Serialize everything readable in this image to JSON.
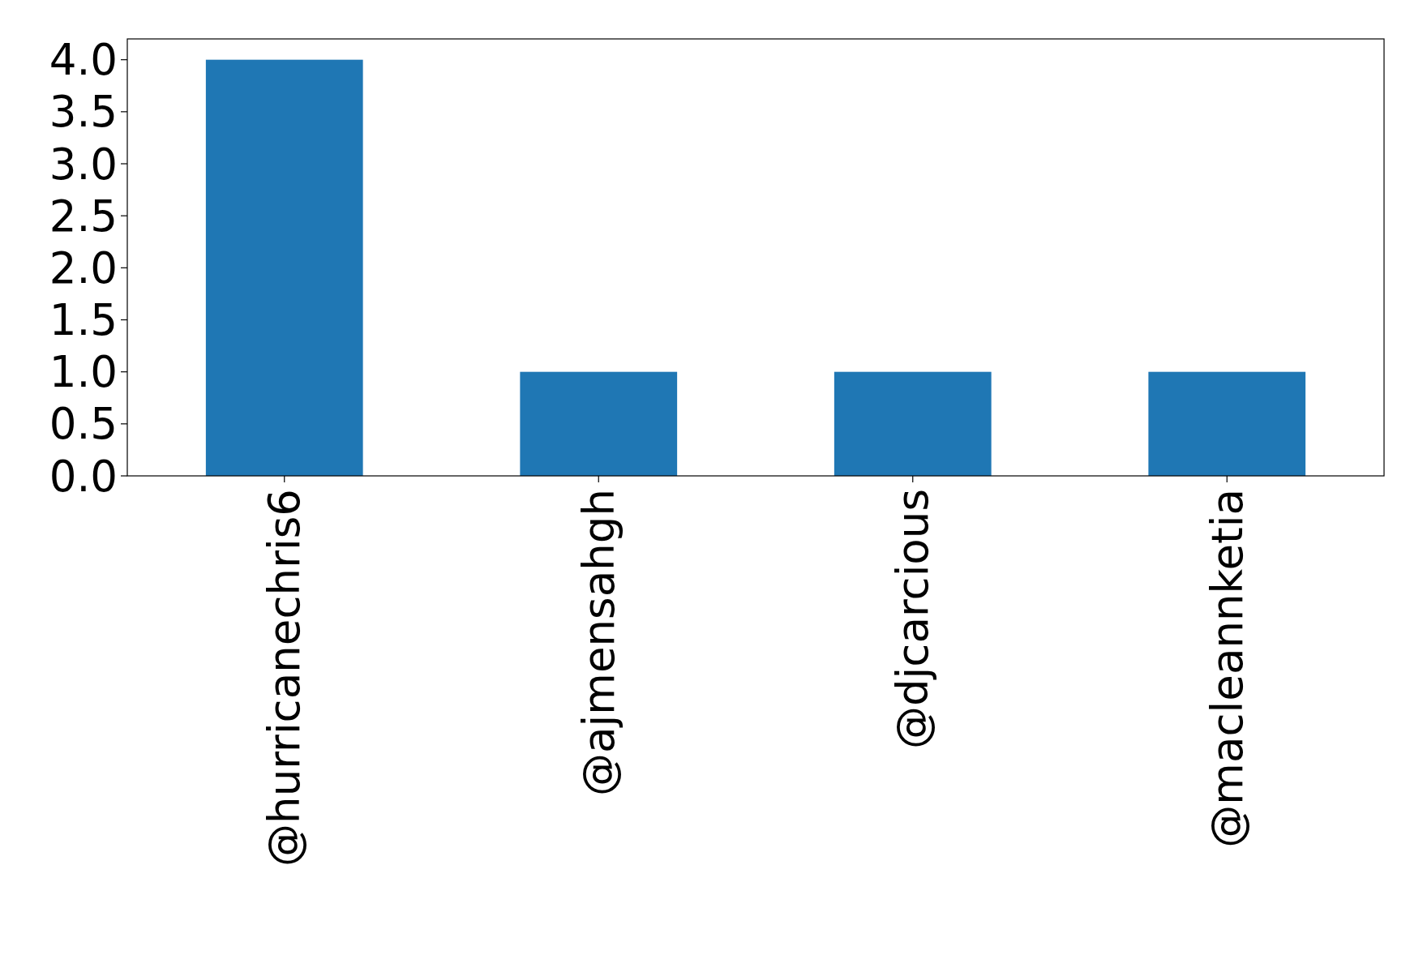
{
  "chart_data": {
    "type": "bar",
    "categories": [
      "@hurricanechris6",
      "@ajmensahgh",
      "@djcarcious",
      "@macleannketia"
    ],
    "values": [
      4,
      1,
      1,
      1
    ],
    "color": "#1f77b4",
    "ylim": [
      0,
      4.2
    ],
    "yticks": [
      {
        "value": 0,
        "label": "0.0"
      },
      {
        "value": 0.5,
        "label": "0.5"
      },
      {
        "value": 1,
        "label": "1.0"
      },
      {
        "value": 1.5,
        "label": "1.5"
      },
      {
        "value": 2,
        "label": "2.0"
      },
      {
        "value": 2.5,
        "label": "2.5"
      },
      {
        "value": 3,
        "label": "3.0"
      },
      {
        "value": 3.5,
        "label": "3.5"
      },
      {
        "value": 4,
        "label": "4.0"
      }
    ]
  }
}
